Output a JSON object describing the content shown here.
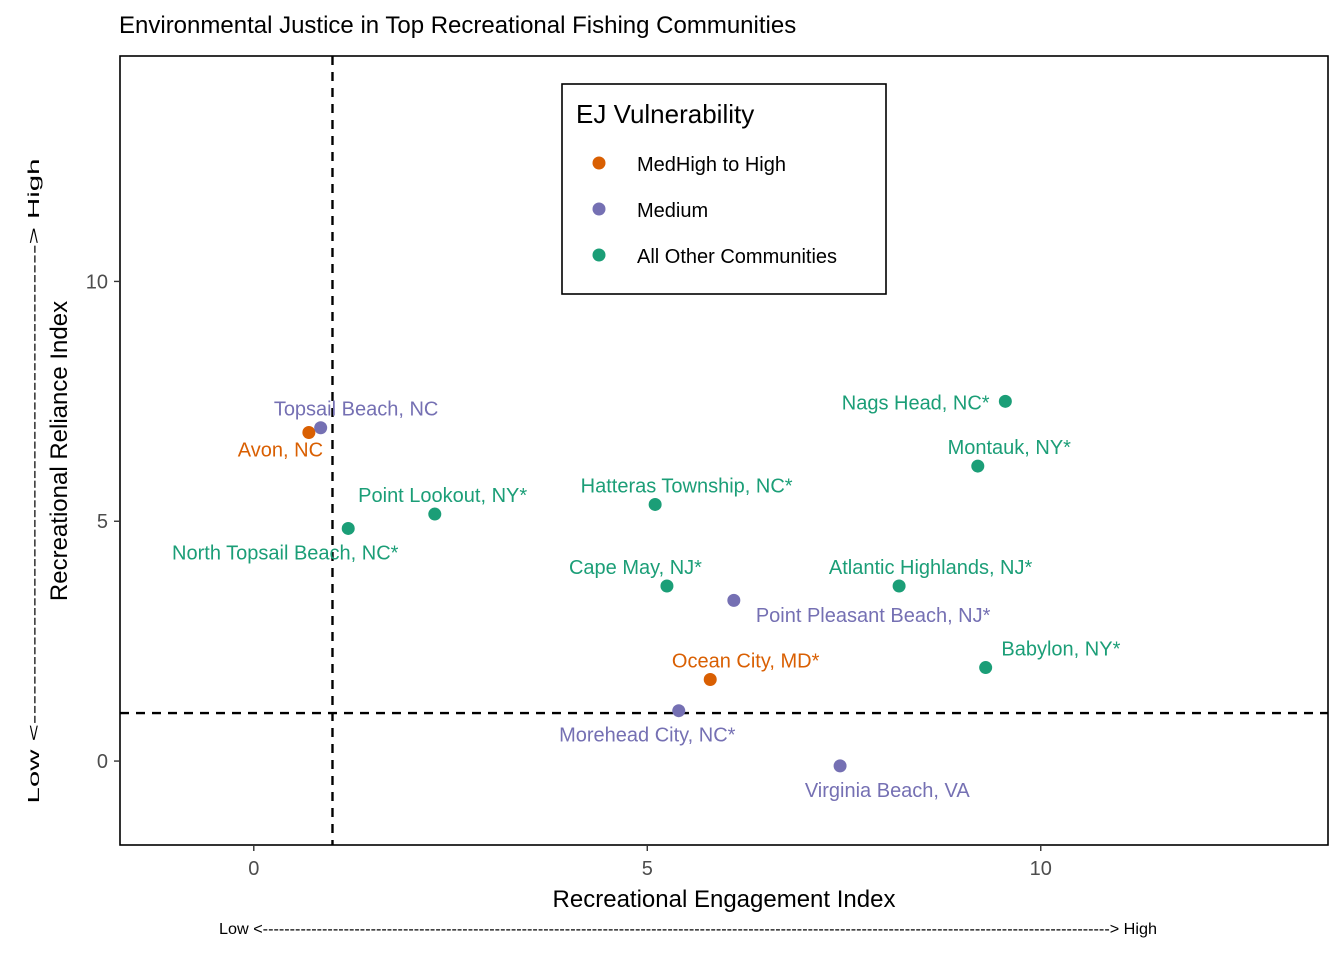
{
  "chart_data": {
    "type": "scatter",
    "title": "Environmental Justice in Top Recreational Fishing Communities",
    "xlabel": "Recreational Engagement Index",
    "ylabel": "Recreational Reliance Index",
    "x_arrow_label": "Low <-------------------------------------------------------------------------------------------------------------------------------------------------------------> High",
    "y_arrow_label": "Low <-------------------------------------------------> High",
    "xlim": [
      -1.7,
      13.65
    ],
    "ylim": [
      -1.75,
      14.7
    ],
    "x_ticks": [
      0,
      5,
      10
    ],
    "y_ticks": [
      0,
      5,
      10
    ],
    "reference_lines": {
      "x": 1,
      "y": 1
    },
    "grid": false,
    "legend": {
      "title": "EJ Vulnerability",
      "position": "top-center",
      "entries": [
        {
          "label": "MedHigh to High",
          "color": "#D95F02"
        },
        {
          "label": "Medium",
          "color": "#7570B3"
        },
        {
          "label": "All Other Communities",
          "color": "#1B9E77"
        }
      ]
    },
    "series": [
      {
        "name": "MedHigh to High",
        "color": "#D95F02",
        "points": [
          {
            "label": "Avon, NC",
            "x": 0.7,
            "y": 6.85,
            "anchor": "end",
            "dx": 0.18,
            "dy": -0.35
          },
          {
            "label": "Ocean City, MD*",
            "x": 5.8,
            "y": 1.7,
            "anchor": "middle",
            "dx": 0.45,
            "dy": 0.4
          }
        ]
      },
      {
        "name": "Medium",
        "color": "#7570B3",
        "points": [
          {
            "label": "Topsail Beach, NC",
            "x": 0.85,
            "y": 6.95,
            "anchor": "middle",
            "dx": 0.45,
            "dy": 0.4
          },
          {
            "label": "Point Pleasant Beach, NJ*",
            "x": 6.1,
            "y": 3.35,
            "anchor": "middle",
            "dx": 1.77,
            "dy": -0.3
          },
          {
            "label": "Morehead City, NC*",
            "x": 5.4,
            "y": 1.05,
            "anchor": "middle",
            "dx": -0.4,
            "dy": -0.5
          },
          {
            "label": "Virginia Beach, VA",
            "x": 7.45,
            "y": -0.1,
            "anchor": "middle",
            "dx": 0.6,
            "dy": -0.5
          }
        ]
      },
      {
        "name": "All Other Communities",
        "color": "#1B9E77",
        "points": [
          {
            "label": "Nags Head, NC*",
            "x": 9.55,
            "y": 7.5,
            "anchor": "end",
            "dx": -0.2,
            "dy": -0.02
          },
          {
            "label": "Montauk, NY*",
            "x": 9.2,
            "y": 6.15,
            "anchor": "middle",
            "dx": 0.4,
            "dy": 0.4
          },
          {
            "label": "Hatteras Township, NC*",
            "x": 5.1,
            "y": 5.35,
            "anchor": "middle",
            "dx": 0.4,
            "dy": 0.4
          },
          {
            "label": "Point Lookout, NY*",
            "x": 2.3,
            "y": 5.15,
            "anchor": "middle",
            "dx": 0.1,
            "dy": 0.4
          },
          {
            "label": "North Topsail Beach, NC*",
            "x": 1.2,
            "y": 4.85,
            "anchor": "middle",
            "dx": -0.8,
            "dy": -0.5
          },
          {
            "label": "Cape May, NJ*",
            "x": 5.25,
            "y": 3.65,
            "anchor": "middle",
            "dx": -0.4,
            "dy": 0.4
          },
          {
            "label": "Atlantic Highlands, NJ*",
            "x": 8.2,
            "y": 3.65,
            "anchor": "middle",
            "dx": 0.4,
            "dy": 0.4
          },
          {
            "label": "Babylon, NY*",
            "x": 9.3,
            "y": 1.95,
            "anchor": "start",
            "dx": 0.2,
            "dy": 0.4
          }
        ]
      }
    ]
  }
}
